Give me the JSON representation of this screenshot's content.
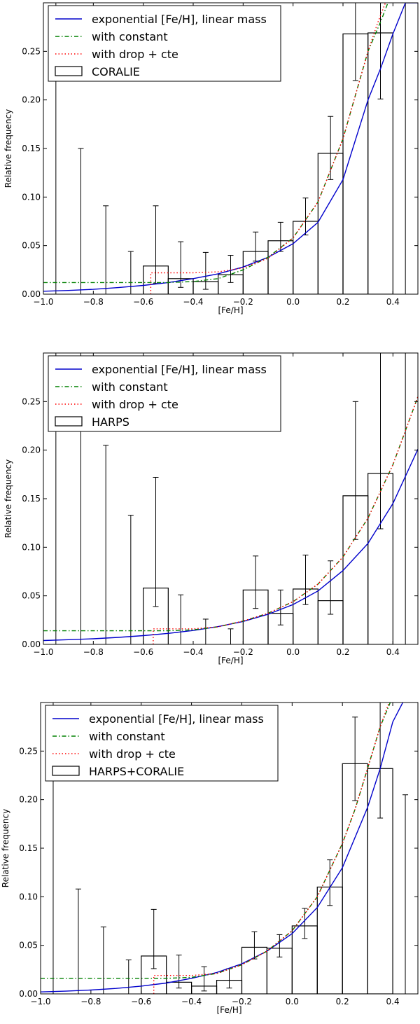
{
  "chart_data": [
    {
      "type": "bar",
      "xlabel": "[Fe/H]",
      "ylabel": "Relative frequency",
      "xlim": [
        -1.0,
        0.5
      ],
      "ylim": [
        0.0,
        0.3
      ],
      "xticks": [
        "−1.0",
        "−0.8",
        "−0.6",
        "−0.4",
        "−0.2",
        "0.0",
        "0.2",
        "0.4"
      ],
      "yticks": [
        "0.00",
        "0.05",
        "0.10",
        "0.15",
        "0.20",
        "0.25"
      ],
      "legend_position": "top-left",
      "legend": [
        {
          "label": "exponential [Fe/H], linear mass",
          "style": "solid",
          "color": "#0000cc"
        },
        {
          "label": "with constant",
          "style": "dashdot",
          "color": "#008000"
        },
        {
          "label": "with drop + cte",
          "style": "dotted",
          "color": "#ff0000"
        },
        {
          "label": "CORALIE",
          "style": "box",
          "color": "#000000"
        }
      ],
      "bins": [
        {
          "left": -1.0,
          "right": -0.9,
          "value": 0.0,
          "err_low": 0.0,
          "err_high": 0.3
        },
        {
          "left": -0.9,
          "right": -0.8,
          "value": 0.0,
          "err_low": 0.0,
          "err_high": 0.15
        },
        {
          "left": -0.8,
          "right": -0.7,
          "value": 0.0,
          "err_low": 0.0,
          "err_high": 0.091
        },
        {
          "left": -0.7,
          "right": -0.6,
          "value": 0.0,
          "err_low": 0.0,
          "err_high": 0.044
        },
        {
          "left": -0.6,
          "right": -0.5,
          "value": 0.029,
          "err_low": 0.011,
          "err_high": 0.091
        },
        {
          "left": -0.5,
          "right": -0.4,
          "value": 0.016,
          "err_low": 0.007,
          "err_high": 0.054
        },
        {
          "left": -0.4,
          "right": -0.3,
          "value": 0.013,
          "err_low": 0.005,
          "err_high": 0.043
        },
        {
          "left": -0.3,
          "right": -0.2,
          "value": 0.02,
          "err_low": 0.012,
          "err_high": 0.04
        },
        {
          "left": -0.2,
          "right": -0.1,
          "value": 0.044,
          "err_low": 0.034,
          "err_high": 0.064
        },
        {
          "left": -0.1,
          "right": 0.0,
          "value": 0.055,
          "err_low": 0.044,
          "err_high": 0.074
        },
        {
          "left": 0.0,
          "right": 0.1,
          "value": 0.075,
          "err_low": 0.061,
          "err_high": 0.099
        },
        {
          "left": 0.1,
          "right": 0.2,
          "value": 0.145,
          "err_low": 0.118,
          "err_high": 0.183
        },
        {
          "left": 0.2,
          "right": 0.3,
          "value": 0.268,
          "err_low": 0.22,
          "err_high": 0.3
        },
        {
          "left": 0.3,
          "right": 0.4,
          "value": 0.269,
          "err_low": 0.201,
          "err_high": 0.3
        },
        {
          "left": 0.4,
          "right": 0.5,
          "value": 0.0,
          "err_low": 0.0,
          "err_high": 0.3
        }
      ],
      "curves": [
        {
          "label": "exponential [Fe/H], linear mass",
          "style": "solid",
          "color": "#0000cc",
          "x": [
            -1.0,
            -0.9,
            -0.8,
            -0.7,
            -0.6,
            -0.5,
            -0.4,
            -0.3,
            -0.2,
            -0.1,
            0.0,
            0.1,
            0.2,
            0.3,
            0.35,
            0.4,
            0.45,
            0.5
          ],
          "y": [
            0.003,
            0.0038,
            0.005,
            0.0068,
            0.009,
            0.012,
            0.016,
            0.021,
            0.028,
            0.038,
            0.052,
            0.074,
            0.118,
            0.2,
            0.232,
            0.268,
            0.3,
            0.3
          ]
        },
        {
          "label": "with constant",
          "style": "dashdot",
          "color": "#008000",
          "x": [
            -1.0,
            -0.7,
            -0.5,
            -0.4,
            -0.3,
            -0.2,
            -0.1,
            0.0,
            0.1,
            0.2,
            0.25,
            0.3,
            0.35,
            0.38
          ],
          "y": [
            0.012,
            0.012,
            0.012,
            0.013,
            0.016,
            0.025,
            0.038,
            0.058,
            0.095,
            0.16,
            0.205,
            0.25,
            0.28,
            0.3
          ]
        },
        {
          "label": "with drop + cte",
          "style": "dotted",
          "color": "#ff0000",
          "x": [
            -0.57,
            -0.57,
            -0.4,
            -0.3,
            -0.2,
            -0.1,
            0.0,
            0.1,
            0.2,
            0.25,
            0.3,
            0.34,
            0.37
          ],
          "y": [
            0.0,
            0.022,
            0.022,
            0.023,
            0.027,
            0.037,
            0.058,
            0.095,
            0.16,
            0.205,
            0.25,
            0.28,
            0.3
          ]
        }
      ]
    },
    {
      "type": "bar",
      "xlabel": "[Fe/H]",
      "ylabel": "Relative frequency",
      "xlim": [
        -1.0,
        0.5
      ],
      "ylim": [
        0.0,
        0.3
      ],
      "xticks": [
        "−1.0",
        "−0.8",
        "−0.6",
        "−0.4",
        "−0.2",
        "0.0",
        "0.2",
        "0.4"
      ],
      "yticks": [
        "0.00",
        "0.05",
        "0.10",
        "0.15",
        "0.20",
        "0.25"
      ],
      "legend_position": "top-left",
      "legend": [
        {
          "label": "exponential [Fe/H], linear mass",
          "style": "solid",
          "color": "#0000cc"
        },
        {
          "label": "with constant",
          "style": "dashdot",
          "color": "#008000"
        },
        {
          "label": "with drop + cte",
          "style": "dotted",
          "color": "#ff0000"
        },
        {
          "label": "HARPS",
          "style": "box",
          "color": "#000000"
        }
      ],
      "bins": [
        {
          "left": -1.0,
          "right": -0.9,
          "value": 0.0,
          "err_low": 0.0,
          "err_high": 0.3
        },
        {
          "left": -0.9,
          "right": -0.8,
          "value": 0.0,
          "err_low": 0.0,
          "err_high": 0.3
        },
        {
          "left": -0.8,
          "right": -0.7,
          "value": 0.0,
          "err_low": 0.0,
          "err_high": 0.205
        },
        {
          "left": -0.7,
          "right": -0.6,
          "value": 0.0,
          "err_low": 0.0,
          "err_high": 0.133
        },
        {
          "left": -0.6,
          "right": -0.5,
          "value": 0.058,
          "err_low": 0.039,
          "err_high": 0.172
        },
        {
          "left": -0.5,
          "right": -0.4,
          "value": 0.0,
          "err_low": 0.0,
          "err_high": 0.051
        },
        {
          "left": -0.4,
          "right": -0.3,
          "value": 0.0,
          "err_low": 0.0,
          "err_high": 0.026
        },
        {
          "left": -0.3,
          "right": -0.2,
          "value": 0.0,
          "err_low": 0.0,
          "err_high": 0.016
        },
        {
          "left": -0.2,
          "right": -0.1,
          "value": 0.056,
          "err_low": 0.037,
          "err_high": 0.091
        },
        {
          "left": -0.1,
          "right": 0.0,
          "value": 0.032,
          "err_low": 0.02,
          "err_high": 0.056
        },
        {
          "left": 0.0,
          "right": 0.1,
          "value": 0.057,
          "err_low": 0.041,
          "err_high": 0.092
        },
        {
          "left": 0.1,
          "right": 0.2,
          "value": 0.045,
          "err_low": 0.031,
          "err_high": 0.086
        },
        {
          "left": 0.2,
          "right": 0.3,
          "value": 0.153,
          "err_low": 0.108,
          "err_high": 0.25
        },
        {
          "left": 0.3,
          "right": 0.4,
          "value": 0.176,
          "err_low": 0.119,
          "err_high": 0.3
        },
        {
          "left": 0.4,
          "right": 0.5,
          "value": 0.0,
          "err_low": 0.0,
          "err_high": 0.3
        }
      ],
      "curves": [
        {
          "label": "exponential [Fe/H], linear mass",
          "style": "solid",
          "color": "#0000cc",
          "x": [
            -1.0,
            -0.9,
            -0.8,
            -0.7,
            -0.6,
            -0.5,
            -0.4,
            -0.3,
            -0.2,
            -0.1,
            0.0,
            0.1,
            0.2,
            0.3,
            0.4,
            0.5
          ],
          "y": [
            0.004,
            0.0048,
            0.0058,
            0.0072,
            0.009,
            0.0113,
            0.0143,
            0.0183,
            0.0236,
            0.031,
            0.041,
            0.055,
            0.076,
            0.104,
            0.145,
            0.201
          ]
        },
        {
          "label": "with constant",
          "style": "dashdot",
          "color": "#008000",
          "x": [
            -1.0,
            -0.7,
            -0.5,
            -0.4,
            -0.3,
            -0.2,
            -0.1,
            0.0,
            0.1,
            0.2,
            0.3,
            0.4,
            0.5
          ],
          "y": [
            0.014,
            0.014,
            0.014,
            0.015,
            0.018,
            0.024,
            0.032,
            0.044,
            0.062,
            0.09,
            0.13,
            0.185,
            0.255
          ]
        },
        {
          "label": "with drop + cte",
          "style": "dotted",
          "color": "#ff0000",
          "x": [
            -0.56,
            -0.56,
            -0.4,
            -0.3,
            -0.2,
            -0.1,
            0.0,
            0.1,
            0.2,
            0.3,
            0.4,
            0.5
          ],
          "y": [
            0.0,
            0.016,
            0.016,
            0.018,
            0.024,
            0.032,
            0.044,
            0.062,
            0.09,
            0.13,
            0.185,
            0.255
          ]
        }
      ]
    },
    {
      "type": "bar",
      "xlabel": "[Fe/H]",
      "ylabel": "Relative frequency",
      "xlim": [
        -1.0,
        0.5
      ],
      "ylim": [
        0.0,
        0.3
      ],
      "xticks": [
        "−1.0",
        "−0.8",
        "−0.6",
        "−0.4",
        "−0.2",
        "0.0",
        "0.2",
        "0.4"
      ],
      "yticks": [
        "0.00",
        "0.05",
        "0.10",
        "0.15",
        "0.20",
        "0.25"
      ],
      "legend_position": "top-left",
      "legend": [
        {
          "label": "exponential [Fe/H], linear mass",
          "style": "solid",
          "color": "#0000cc"
        },
        {
          "label": "with constant",
          "style": "dashdot",
          "color": "#008000"
        },
        {
          "label": "with drop + cte",
          "style": "dotted",
          "color": "#ff0000"
        },
        {
          "label": "HARPS+CORALIE",
          "style": "box",
          "color": "#000000"
        }
      ],
      "bins": [
        {
          "left": -1.0,
          "right": -0.9,
          "value": 0.0,
          "err_low": 0.0,
          "err_high": 0.3
        },
        {
          "left": -0.9,
          "right": -0.8,
          "value": 0.0,
          "err_low": 0.0,
          "err_high": 0.108
        },
        {
          "left": -0.8,
          "right": -0.7,
          "value": 0.0,
          "err_low": 0.0,
          "err_high": 0.069
        },
        {
          "left": -0.7,
          "right": -0.6,
          "value": 0.0,
          "err_low": 0.0,
          "err_high": 0.035
        },
        {
          "left": -0.6,
          "right": -0.5,
          "value": 0.039,
          "err_low": 0.026,
          "err_high": 0.087
        },
        {
          "left": -0.5,
          "right": -0.4,
          "value": 0.012,
          "err_low": 0.006,
          "err_high": 0.04
        },
        {
          "left": -0.4,
          "right": -0.3,
          "value": 0.008,
          "err_low": 0.003,
          "err_high": 0.028
        },
        {
          "left": -0.3,
          "right": -0.2,
          "value": 0.014,
          "err_low": 0.006,
          "err_high": 0.026
        },
        {
          "left": -0.2,
          "right": -0.1,
          "value": 0.048,
          "err_low": 0.036,
          "err_high": 0.064
        },
        {
          "left": -0.1,
          "right": 0.0,
          "value": 0.047,
          "err_low": 0.038,
          "err_high": 0.061
        },
        {
          "left": 0.0,
          "right": 0.1,
          "value": 0.07,
          "err_low": 0.057,
          "err_high": 0.088
        },
        {
          "left": 0.1,
          "right": 0.2,
          "value": 0.11,
          "err_low": 0.091,
          "err_high": 0.138
        },
        {
          "left": 0.2,
          "right": 0.3,
          "value": 0.237,
          "err_low": 0.199,
          "err_high": 0.285
        },
        {
          "left": 0.3,
          "right": 0.4,
          "value": 0.232,
          "err_low": 0.181,
          "err_high": 0.3
        },
        {
          "left": 0.4,
          "right": 0.5,
          "value": 0.0,
          "err_low": 0.0,
          "err_high": 0.205
        }
      ],
      "curves": [
        {
          "label": "exponential [Fe/H], linear mass",
          "style": "solid",
          "color": "#0000cc",
          "x": [
            -1.0,
            -0.9,
            -0.8,
            -0.7,
            -0.6,
            -0.5,
            -0.4,
            -0.3,
            -0.2,
            -0.1,
            0.0,
            0.1,
            0.2,
            0.3,
            0.35,
            0.4,
            0.44
          ],
          "y": [
            0.002,
            0.0028,
            0.004,
            0.0056,
            0.008,
            0.0112,
            0.016,
            0.022,
            0.031,
            0.044,
            0.062,
            0.089,
            0.13,
            0.192,
            0.232,
            0.28,
            0.3
          ]
        },
        {
          "label": "with constant",
          "style": "dashdot",
          "color": "#008000",
          "x": [
            -1.0,
            -0.7,
            -0.5,
            -0.4,
            -0.3,
            -0.2,
            -0.1,
            0.0,
            0.1,
            0.2,
            0.25,
            0.3,
            0.35,
            0.39
          ],
          "y": [
            0.016,
            0.016,
            0.016,
            0.017,
            0.021,
            0.03,
            0.044,
            0.065,
            0.1,
            0.155,
            0.19,
            0.232,
            0.275,
            0.3
          ]
        },
        {
          "label": "with drop + cte",
          "style": "dotted",
          "color": "#ff0000",
          "x": [
            -0.55,
            -0.55,
            -0.4,
            -0.3,
            -0.2,
            -0.1,
            0.0,
            0.1,
            0.2,
            0.25,
            0.3,
            0.35,
            0.385
          ],
          "y": [
            0.0,
            0.019,
            0.019,
            0.021,
            0.03,
            0.044,
            0.065,
            0.1,
            0.155,
            0.19,
            0.232,
            0.275,
            0.3
          ]
        }
      ]
    }
  ]
}
